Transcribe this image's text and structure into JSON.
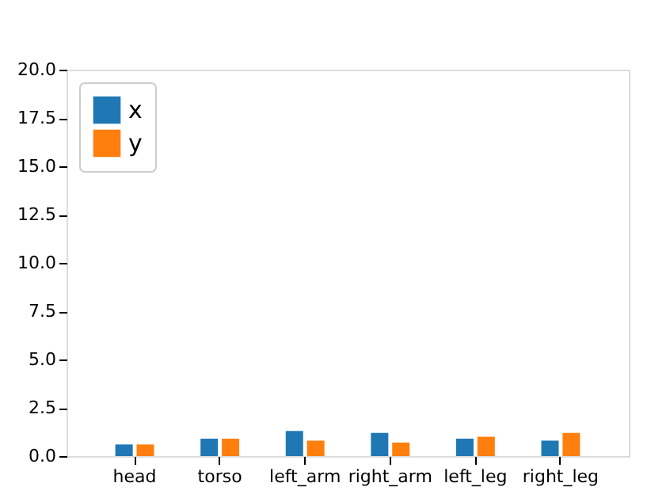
{
  "chart_data": {
    "type": "bar",
    "categories": [
      "head",
      "torso",
      "left_arm",
      "right_arm",
      "left_leg",
      "right_leg"
    ],
    "series": [
      {
        "name": "x",
        "color": "#1f77b4",
        "values": [
          0.6,
          0.9,
          1.3,
          1.2,
          0.9,
          0.8
        ]
      },
      {
        "name": "y",
        "color": "#ff7f0e",
        "values": [
          0.6,
          0.9,
          0.8,
          0.7,
          1.0,
          1.2
        ]
      }
    ],
    "ylim": [
      0,
      20
    ],
    "yticks": [
      {
        "value": 0,
        "label": "0.0"
      },
      2.5,
      {
        "value": 5,
        "label": "5.0"
      },
      7.5,
      {
        "value": 10,
        "label": "10.0"
      },
      12.5,
      {
        "value": 15,
        "label": "15.0"
      },
      17.5,
      {
        "value": 20,
        "label": "20.0"
      }
    ],
    "grid": false,
    "legend": "top left"
  }
}
